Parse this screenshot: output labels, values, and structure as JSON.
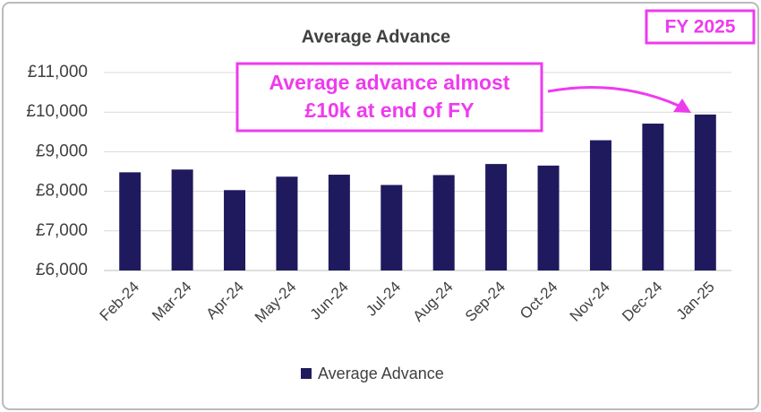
{
  "chart_data": {
    "type": "bar",
    "title": "Average Advance",
    "badge": "FY 2025",
    "callout": [
      "Average advance almost",
      "£10k at end of FY"
    ],
    "categories": [
      "Feb-24",
      "Mar-24",
      "Apr-24",
      "May-24",
      "Jun-24",
      "Jul-24",
      "Aug-24",
      "Sep-24",
      "Oct-24",
      "Nov-24",
      "Dec-24",
      "Jan-25"
    ],
    "series": [
      {
        "name": "Average Advance",
        "color": "#1f1a5e",
        "values": [
          8480,
          8550,
          8030,
          8370,
          8420,
          8160,
          8410,
          8690,
          8650,
          9290,
          9710,
          9940
        ]
      }
    ],
    "ylim": [
      6000,
      11000
    ],
    "yticks": [
      {
        "value": 6000,
        "label": "£6,000"
      },
      {
        "value": 7000,
        "label": "£7,000"
      },
      {
        "value": 8000,
        "label": "£8,000"
      },
      {
        "value": 9000,
        "label": "£9,000"
      },
      {
        "value": 10000,
        "label": "£10,000"
      },
      {
        "value": 11000,
        "label": "£11,000"
      }
    ],
    "grid": true,
    "accent": "#ee3bee"
  }
}
